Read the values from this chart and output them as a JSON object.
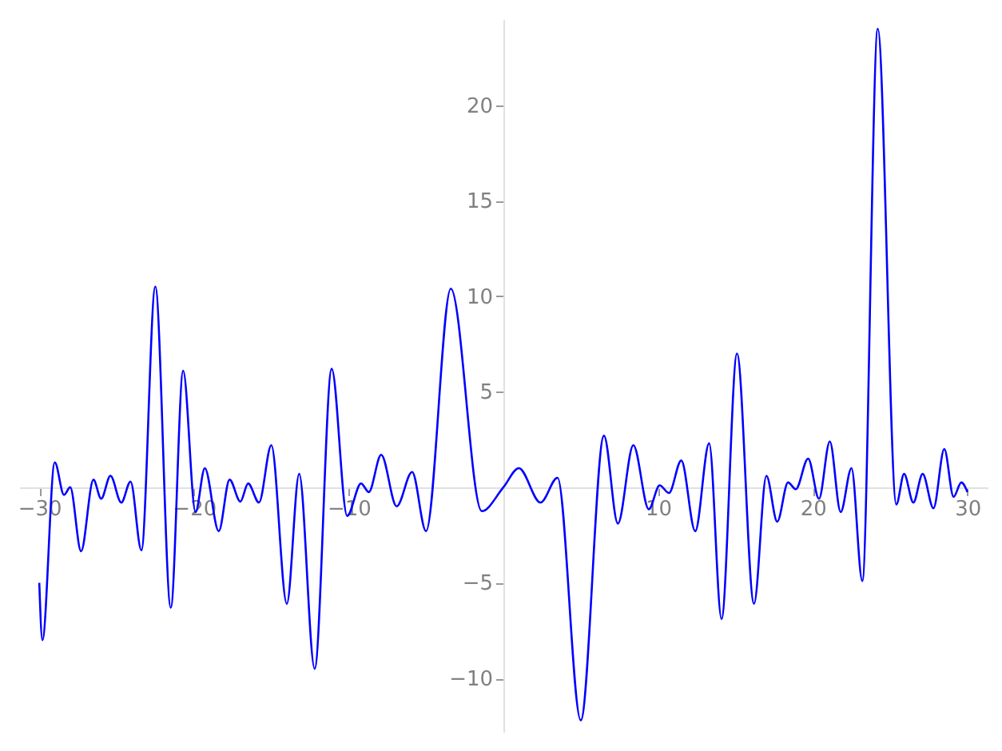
{
  "chart_data": {
    "type": "line",
    "xlim": [
      -31.3,
      31.3
    ],
    "ylim": [
      -12.8,
      24.5
    ],
    "xticks": [
      -30,
      -20,
      -10,
      10,
      20,
      30
    ],
    "yticks": [
      -10,
      -5,
      5,
      10,
      15,
      20
    ],
    "grid": false,
    "marker": "none",
    "line_style": "solid",
    "series": [
      {
        "color": "#0000ff",
        "x": [
          -30,
          -29.8,
          -29.0,
          -28.4,
          -28.0,
          -27.3,
          -26.5,
          -26.0,
          -25.4,
          -24.7,
          -24.1,
          -23.4,
          -22.5,
          -21.5,
          -20.7,
          -19.9,
          -19.3,
          -18.4,
          -17.7,
          -17.0,
          -16.5,
          -15.8,
          -15.0,
          -14.0,
          -13.2,
          -12.2,
          -11.1,
          -10.1,
          -9.2,
          -8.7,
          -7.9,
          -6.9,
          -5.9,
          -5.0,
          -3.4,
          -1.4,
          0,
          1.0,
          2.4,
          3.5,
          5.0,
          6.5,
          7.4,
          8.4,
          9.4,
          10.1,
          10.7,
          11.5,
          12.4,
          13.3,
          14.1,
          15.1,
          16.2,
          17.0,
          17.7,
          18.4,
          18.9,
          19.7,
          20.4,
          21.1,
          21.8,
          22.5,
          23.2,
          24.2,
          25.4,
          25.9,
          26.5,
          27.1,
          27.8,
          28.5,
          29.1,
          29.6,
          30
        ],
        "values": [
          -5.0,
          -8.0,
          1.3,
          -0.4,
          0.0,
          -3.35,
          0.4,
          -0.6,
          0.6,
          -0.8,
          0.3,
          -3.3,
          10.5,
          -6.3,
          6.1,
          -1.3,
          1.0,
          -2.3,
          0.4,
          -0.75,
          0.2,
          -0.8,
          2.2,
          -6.1,
          0.7,
          -9.5,
          6.2,
          -1.5,
          0.2,
          -0.25,
          1.7,
          -1.0,
          0.8,
          -2.3,
          10.4,
          -1.25,
          0,
          1.0,
          -0.8,
          0.5,
          -12.2,
          2.7,
          -1.9,
          2.2,
          -1.15,
          0.1,
          -0.3,
          1.4,
          -2.3,
          2.3,
          -6.9,
          7.0,
          -6.1,
          0.6,
          -1.8,
          0.25,
          -0.1,
          1.5,
          -0.6,
          2.4,
          -1.3,
          1.0,
          -4.9,
          24.0,
          -0.9,
          0.7,
          -0.8,
          0.7,
          -1.1,
          2.0,
          -0.5,
          0.25,
          -0.25
        ]
      }
    ]
  }
}
